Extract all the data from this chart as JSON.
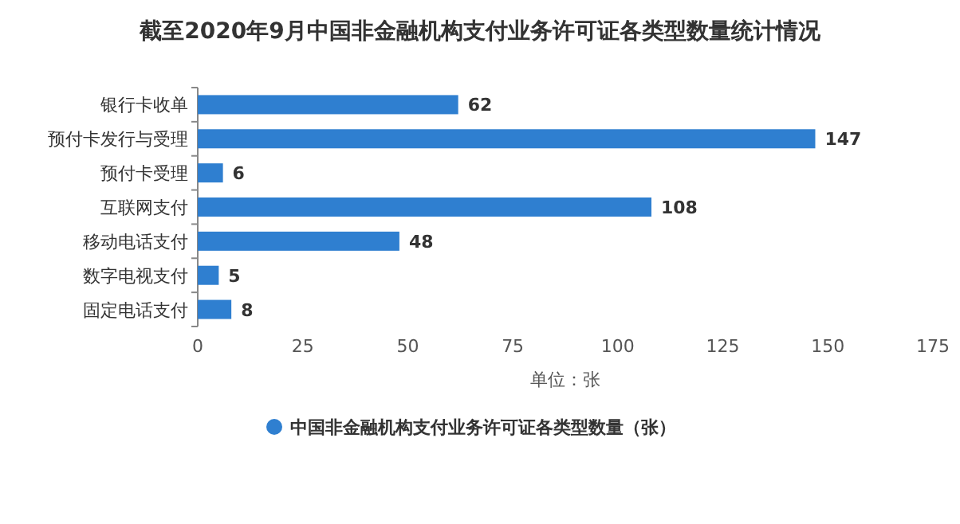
{
  "chart_data": {
    "type": "bar",
    "orientation": "horizontal",
    "title": "截至2020年9月中国非金融机构支付业务许可证各类型数量统计情况",
    "categories": [
      "银行卡收单",
      "预付卡发行与受理",
      "预付卡受理",
      "互联网支付",
      "移动电话支付",
      "数字电视支付",
      "固定电话支付"
    ],
    "series": [
      {
        "name": "中国非金融机构支付业务许可证各类型数量（张）",
        "color": "#2f7fd0",
        "values": [
          62,
          147,
          6,
          108,
          48,
          5,
          8
        ]
      }
    ],
    "xlim": [
      0,
      175
    ],
    "xticks": [
      0,
      25,
      50,
      75,
      100,
      125,
      150,
      175
    ],
    "xlabel": "单位：张",
    "data_labels": true,
    "legend": "bottom",
    "grid": false
  }
}
